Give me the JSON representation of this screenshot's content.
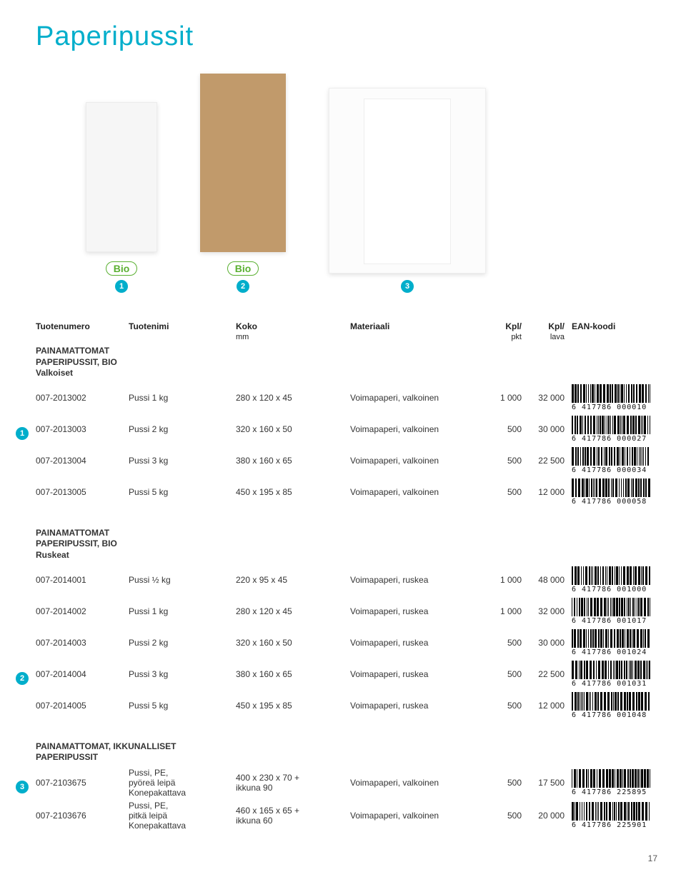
{
  "title": "Paperipussit",
  "bio_label": "Bio",
  "product_badges": [
    1,
    2,
    3
  ],
  "columns": {
    "tuotenumero": "Tuotenumero",
    "tuotenimi": "Tuotenimi",
    "koko": "Koko",
    "koko_sub": "mm",
    "materiaali": "Materiaali",
    "kpl_pkt": "Kpl/",
    "kpl_pkt_sub": "pkt",
    "kpl_lava": "Kpl/",
    "kpl_lava_sub": "lava",
    "ean": "EAN-koodi"
  },
  "sections": [
    {
      "label_lines": [
        "PAINAMATTOMAT",
        "PAPERIPUSSIT, BIO",
        "Valkoiset"
      ],
      "rows": [
        {
          "marker": null,
          "num": "007-2013002",
          "name": "Pussi 1 kg",
          "koko": "280 x 120 x 45",
          "mat": "Voimapaperi, valkoinen",
          "pkt": "1 000",
          "lava": "32 000",
          "ean": "6 417786 000010"
        },
        {
          "marker": 1,
          "num": "007-2013003",
          "name": "Pussi 2 kg",
          "koko": "320 x 160 x 50",
          "mat": "Voimapaperi, valkoinen",
          "pkt": "500",
          "lava": "30 000",
          "ean": "6 417786 000027"
        },
        {
          "marker": null,
          "num": "007-2013004",
          "name": "Pussi 3 kg",
          "koko": "380 x 160 x 65",
          "mat": "Voimapaperi, valkoinen",
          "pkt": "500",
          "lava": "22 500",
          "ean": "6 417786 000034"
        },
        {
          "marker": null,
          "num": "007-2013005",
          "name": "Pussi 5 kg",
          "koko": "450 x 195 x 85",
          "mat": "Voimapaperi, valkoinen",
          "pkt": "500",
          "lava": "12 000",
          "ean": "6 417786 000058"
        }
      ]
    },
    {
      "label_lines": [
        "PAINAMATTOMAT",
        "PAPERIPUSSIT, BIO",
        "Ruskeat"
      ],
      "rows": [
        {
          "marker": null,
          "num": "007-2014001",
          "name": "Pussi ½ kg",
          "koko": "220 x 95 x 45",
          "mat": "Voimapaperi, ruskea",
          "pkt": "1 000",
          "lava": "48 000",
          "ean": "6 417786 001000"
        },
        {
          "marker": null,
          "num": "007-2014002",
          "name": "Pussi 1 kg",
          "koko": "280 x 120 x 45",
          "mat": "Voimapaperi, ruskea",
          "pkt": "1 000",
          "lava": "32 000",
          "ean": "6 417786 001017"
        },
        {
          "marker": null,
          "num": "007-2014003",
          "name": "Pussi 2 kg",
          "koko": "320 x 160 x 50",
          "mat": "Voimapaperi, ruskea",
          "pkt": "500",
          "lava": "30 000",
          "ean": "6 417786 001024"
        },
        {
          "marker": 2,
          "num": "007-2014004",
          "name": "Pussi 3 kg",
          "koko": "380 x 160 x 65",
          "mat": "Voimapaperi, ruskea",
          "pkt": "500",
          "lava": "22 500",
          "ean": "6 417786 001031"
        },
        {
          "marker": null,
          "num": "007-2014005",
          "name": "Pussi 5 kg",
          "koko": "450 x 195 x 85",
          "mat": "Voimapaperi, ruskea",
          "pkt": "500",
          "lava": "12 000",
          "ean": "6 417786 001048"
        }
      ]
    },
    {
      "label_lines": [
        "PAINAMATTOMAT, IKKUNALLISET",
        "PAPERIPUSSIT"
      ],
      "rows": [
        {
          "marker": 3,
          "num": "007-2103675",
          "name": "Pussi, PE,\npyöreä leipä\nKonepakattava",
          "koko": "400 x 230 x 70 +\nikkuna 90",
          "mat": "Voimapaperi, valkoinen",
          "pkt": "500",
          "lava": "17 500",
          "ean": "6 417786 225895"
        },
        {
          "marker": null,
          "num": "007-2103676",
          "name": "Pussi, PE,\npitkä leipä\nKonepakattava",
          "koko": "460 x 165 x 65 +\nikkuna 60",
          "mat": "Voimapaperi, valkoinen",
          "pkt": "500",
          "lava": "20 000",
          "ean": "6 417786 225901"
        }
      ]
    }
  ],
  "page_number": "17",
  "colors": {
    "accent": "#00aecb",
    "bio_green": "#5ab031",
    "bg": "#ffffff",
    "text": "#333333",
    "brown_bag": "#c19a6b"
  }
}
